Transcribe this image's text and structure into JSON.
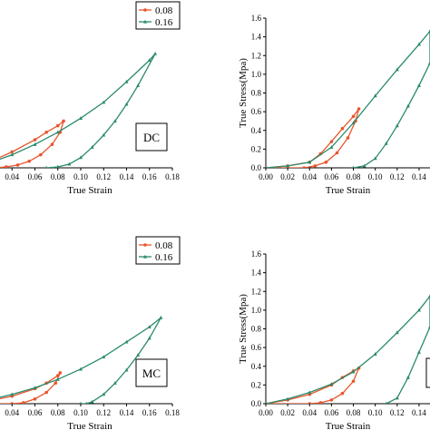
{
  "colors": {
    "series_008": "#e8552d",
    "series_016": "#2a8a6a",
    "axis": "#000000"
  },
  "chart_data": [
    {
      "id": "top-left",
      "type": "line",
      "xlabel": "True Strain",
      "ylabel": "",
      "tag": "DC",
      "xlim": [
        0.02,
        0.18
      ],
      "ylim": [
        0,
        1.6
      ],
      "xticks": [
        "0.04",
        "0.06",
        "0.08",
        "0.10",
        "0.12",
        "0.14",
        "0.16",
        "0.18"
      ],
      "yticks": [],
      "legend": {
        "position": "top-right",
        "entries": [
          "0.08",
          "0.16"
        ]
      },
      "series": [
        {
          "name": "0.08",
          "color": "#e8552d",
          "marker": "circle",
          "x": [
            0.0,
            0.02,
            0.04,
            0.06,
            0.07,
            0.08,
            0.085,
            0.082,
            0.075,
            0.065,
            0.055,
            0.045,
            0.035,
            0.025,
            0.0
          ],
          "y": [
            0.0,
            0.06,
            0.17,
            0.3,
            0.38,
            0.45,
            0.5,
            0.38,
            0.25,
            0.14,
            0.07,
            0.03,
            0.01,
            0.0,
            0.0
          ]
        },
        {
          "name": "0.16",
          "color": "#2a8a6a",
          "marker": "triangle",
          "x": [
            0.0,
            0.02,
            0.04,
            0.06,
            0.08,
            0.1,
            0.12,
            0.14,
            0.16,
            0.165,
            0.15,
            0.14,
            0.13,
            0.12,
            0.11,
            0.1,
            0.09,
            0.08,
            0.07
          ],
          "y": [
            0.0,
            0.05,
            0.14,
            0.25,
            0.38,
            0.53,
            0.7,
            0.92,
            1.15,
            1.22,
            0.88,
            0.68,
            0.5,
            0.35,
            0.22,
            0.11,
            0.04,
            0.01,
            0.0
          ]
        }
      ]
    },
    {
      "id": "top-right",
      "type": "line",
      "xlabel": "True Strain",
      "ylabel": "True Stress(Mpa)",
      "tag": "",
      "xlim": [
        0.0,
        0.15
      ],
      "ylim": [
        0,
        1.6
      ],
      "xticks": [
        "0.00",
        "0.02",
        "0.04",
        "0.06",
        "0.08",
        "0.10",
        "0.12",
        "0.14"
      ],
      "yticks": [
        "0.0",
        "0.2",
        "0.4",
        "0.6",
        "0.8",
        "1.0",
        "1.2",
        "1.4",
        "1.6"
      ],
      "legend": null,
      "series": [
        {
          "name": "0.08",
          "color": "#e8552d",
          "marker": "circle",
          "x": [
            0.0,
            0.02,
            0.04,
            0.05,
            0.06,
            0.07,
            0.08,
            0.085,
            0.082,
            0.075,
            0.065,
            0.055,
            0.045,
            0.035,
            0.0
          ],
          "y": [
            0.0,
            0.02,
            0.06,
            0.15,
            0.28,
            0.42,
            0.55,
            0.63,
            0.5,
            0.32,
            0.16,
            0.06,
            0.02,
            0.0,
            0.0
          ]
        },
        {
          "name": "0.16",
          "color": "#2a8a6a",
          "marker": "triangle",
          "x": [
            0.0,
            0.02,
            0.04,
            0.06,
            0.08,
            0.1,
            0.12,
            0.14,
            0.15,
            0.15,
            0.14,
            0.13,
            0.12,
            0.11,
            0.1,
            0.09,
            0.08
          ],
          "y": [
            0.0,
            0.02,
            0.06,
            0.22,
            0.48,
            0.77,
            1.05,
            1.32,
            1.46,
            1.12,
            0.88,
            0.66,
            0.45,
            0.26,
            0.1,
            0.02,
            0.0
          ]
        }
      ]
    },
    {
      "id": "bottom-left",
      "type": "line",
      "xlabel": "True Strain",
      "ylabel": "",
      "tag": "MC",
      "xlim": [
        0.02,
        0.18
      ],
      "ylim": [
        0,
        1.6
      ],
      "xticks": [
        "0.04",
        "0.06",
        "0.08",
        "0.10",
        "0.12",
        "0.14",
        "0.16",
        "0.18"
      ],
      "yticks": [],
      "legend": {
        "position": "top-right",
        "entries": [
          "0.08",
          "0.16"
        ]
      },
      "series": [
        {
          "name": "0.08",
          "color": "#e8552d",
          "marker": "circle",
          "x": [
            0.0,
            0.02,
            0.04,
            0.06,
            0.07,
            0.08,
            0.082,
            0.078,
            0.07,
            0.06,
            0.05,
            0.04,
            0.0
          ],
          "y": [
            0.0,
            0.03,
            0.08,
            0.16,
            0.22,
            0.3,
            0.33,
            0.22,
            0.12,
            0.05,
            0.01,
            0.0,
            0.0
          ]
        },
        {
          "name": "0.16",
          "color": "#2a8a6a",
          "marker": "triangle",
          "x": [
            0.0,
            0.02,
            0.04,
            0.06,
            0.08,
            0.1,
            0.12,
            0.14,
            0.16,
            0.17,
            0.16,
            0.15,
            0.14,
            0.13,
            0.12,
            0.11,
            0.105,
            0.1
          ],
          "y": [
            0.0,
            0.04,
            0.1,
            0.17,
            0.26,
            0.37,
            0.5,
            0.66,
            0.82,
            0.92,
            0.7,
            0.52,
            0.36,
            0.22,
            0.1,
            0.02,
            0.0,
            0.0
          ]
        }
      ]
    },
    {
      "id": "bottom-right",
      "type": "line",
      "xlabel": "True Strain",
      "ylabel": "True Stress(Mpa)",
      "tag": "",
      "xlim": [
        0.0,
        0.15
      ],
      "ylim": [
        0,
        1.6
      ],
      "xticks": [
        "0.00",
        "0.02",
        "0.04",
        "0.06",
        "0.08",
        "0.10",
        "0.12",
        "0.14"
      ],
      "yticks": [
        "0.0",
        "0.2",
        "0.4",
        "0.6",
        "0.8",
        "1.0",
        "1.2",
        "1.4",
        "1.6"
      ],
      "legend": null,
      "series": [
        {
          "name": "0.08",
          "color": "#e8552d",
          "marker": "circle",
          "x": [
            0.0,
            0.02,
            0.04,
            0.06,
            0.07,
            0.08,
            0.085,
            0.08,
            0.07,
            0.06,
            0.05,
            0.04,
            0.0
          ],
          "y": [
            0.0,
            0.04,
            0.1,
            0.2,
            0.28,
            0.35,
            0.38,
            0.24,
            0.11,
            0.04,
            0.01,
            0.0,
            0.0
          ]
        },
        {
          "name": "0.16",
          "color": "#2a8a6a",
          "marker": "triangle",
          "x": [
            0.0,
            0.02,
            0.04,
            0.06,
            0.08,
            0.1,
            0.12,
            0.14,
            0.15,
            0.15,
            0.14,
            0.13,
            0.12,
            0.11
          ],
          "y": [
            0.0,
            0.05,
            0.12,
            0.21,
            0.34,
            0.53,
            0.76,
            1.0,
            1.15,
            0.82,
            0.55,
            0.28,
            0.06,
            0.0
          ]
        }
      ]
    }
  ]
}
